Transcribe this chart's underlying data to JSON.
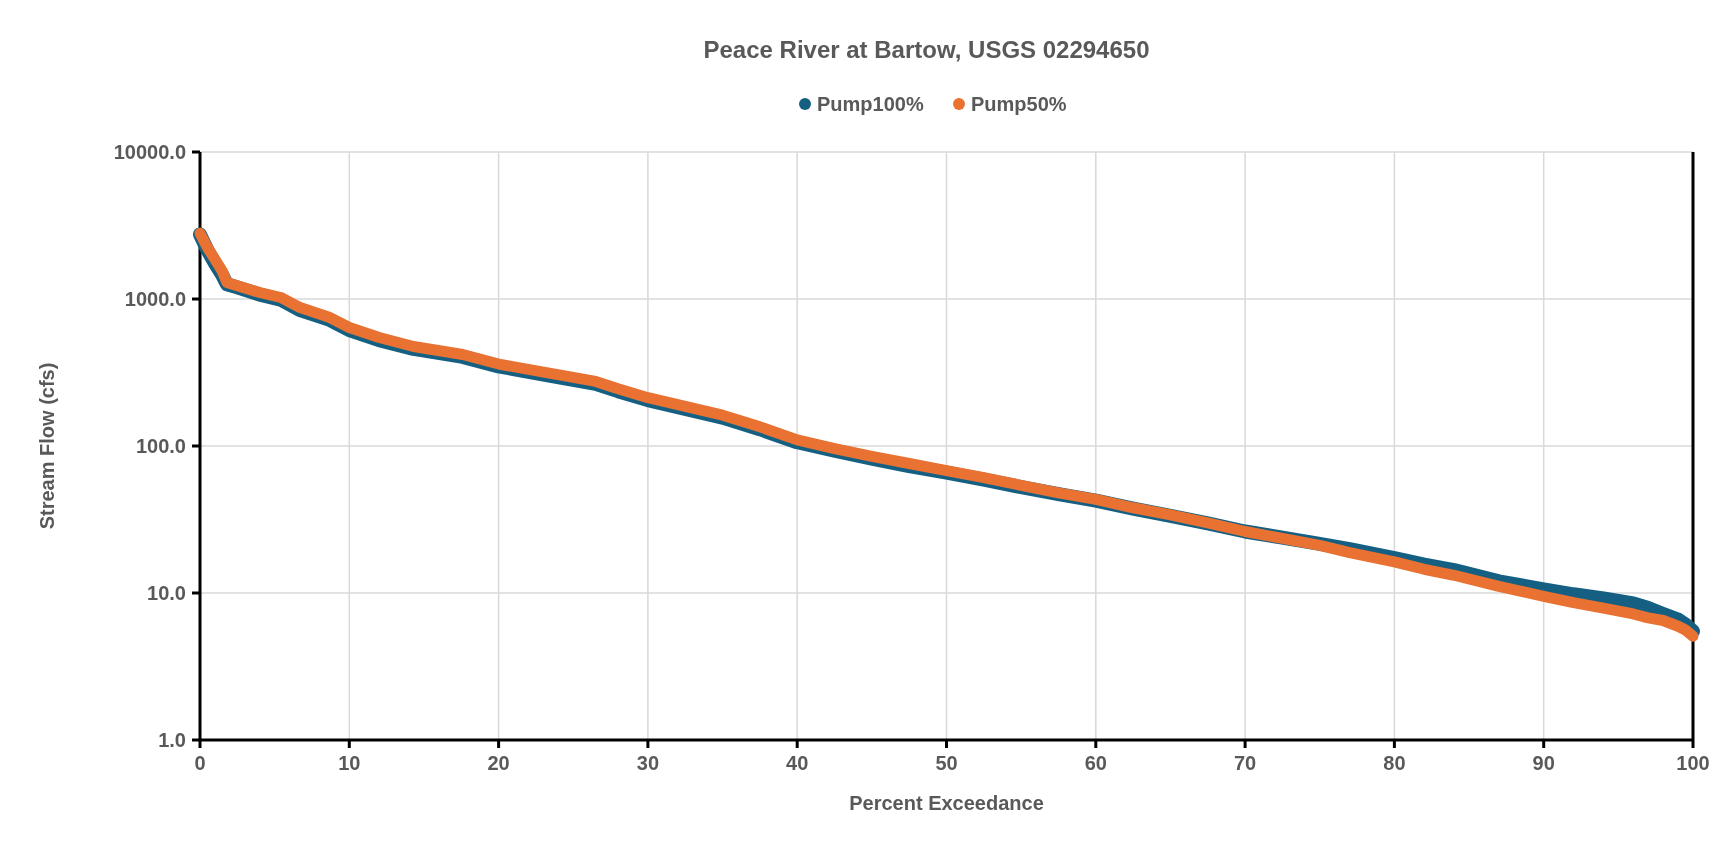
{
  "chart_data": {
    "type": "line",
    "title": "Peace River at Bartow, USGS 02294650",
    "xlabel": "Percent Exceedance",
    "ylabel": "Stream Flow (cfs)",
    "x": [
      0,
      0.5,
      1,
      1.5,
      1.8,
      2.5,
      4,
      5.4,
      6.7,
      8.7,
      10,
      12,
      14.3,
      17.6,
      20,
      23.3,
      26.5,
      28,
      30,
      32.5,
      35,
      37.5,
      40,
      42.5,
      45,
      47.5,
      50,
      52.5,
      55,
      57.5,
      60,
      62.5,
      65,
      67.5,
      70,
      72.5,
      75,
      77,
      80,
      82,
      84,
      87,
      90,
      92,
      94,
      96,
      97,
      98,
      99,
      99.5,
      100
    ],
    "series": [
      {
        "name": "Pump100%",
        "color": "#156082",
        "values": [
          2750,
          2150,
          1750,
          1450,
          1260,
          1200,
          1070,
          990,
          840,
          720,
          615,
          525,
          458,
          404,
          348,
          302,
          265,
          236,
          205,
          179,
          156,
          130,
          106,
          93,
          82,
          73,
          66,
          59,
          52.5,
          47,
          42.5,
          37.5,
          33.5,
          29.8,
          26.2,
          23.8,
          21.6,
          19.9,
          17.3,
          15.6,
          14.3,
          12.0,
          10.6,
          9.8,
          9.2,
          8.5,
          7.9,
          7.2,
          6.6,
          6.1,
          5.5
        ]
      },
      {
        "name": "Pump50%",
        "color": "#e97132",
        "values": [
          2800,
          2240,
          1860,
          1540,
          1295,
          1230,
          1107,
          1024,
          875,
          748,
          640,
          547,
          475,
          419,
          361,
          314,
          275,
          245,
          213,
          186,
          162,
          135,
          110,
          96,
          85,
          76,
          68,
          61,
          54,
          48,
          43.3,
          38,
          34,
          30,
          26.2,
          23.5,
          21.1,
          18.8,
          16.3,
          14.5,
          13.2,
          11.1,
          9.5,
          8.6,
          7.9,
          7.2,
          6.78,
          6.5,
          5.94,
          5.6,
          5.08
        ]
      }
    ],
    "log": "y",
    "xlim": [
      0,
      100
    ],
    "xticks": [
      0,
      10,
      20,
      30,
      40,
      50,
      60,
      70,
      80,
      90,
      100
    ],
    "ylim": [
      1,
      10000
    ],
    "yticks": [
      {
        "value": 1,
        "label": "1.0"
      },
      {
        "value": 10,
        "label": "10.0"
      },
      {
        "value": 100,
        "label": "100.0"
      },
      {
        "value": 1000,
        "label": "1000.0"
      },
      {
        "value": 10000,
        "label": "10000.0"
      }
    ],
    "grid": true,
    "legend": "top"
  }
}
